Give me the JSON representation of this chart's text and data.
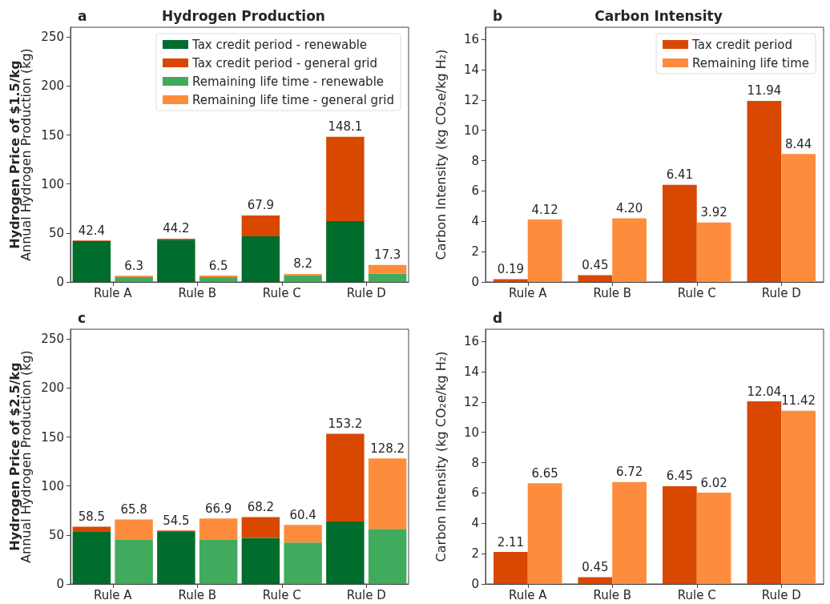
{
  "chart_data": [
    {
      "type": "bar",
      "title": "Hydrogen Production",
      "subtitle": "a",
      "ylabel": "Annual Hydrogen Production (kg)",
      "annotations": [
        "Hydrogen Price of $1.5/kg"
      ],
      "categories": [
        "Rule A",
        null,
        "Rule B",
        null,
        "Rule C",
        null,
        "Rule D",
        null
      ],
      "stacked": true,
      "ylim": [
        0,
        260
      ],
      "yticks": [
        0,
        50,
        100,
        150,
        200,
        250
      ],
      "legend": "top right",
      "totals": [
        "42.4",
        "6.3",
        "44.2",
        "6.5",
        "67.9",
        "8.2",
        "148.1",
        "17.3"
      ],
      "series": [
        {
          "name": "Tax credit period - renewable",
          "color": "#006d2c",
          "values": [
            41.6,
            null,
            43.2,
            null,
            46.6,
            null,
            62.1,
            null
          ]
        },
        {
          "name": "Tax credit period - general grid",
          "color": "#d94801",
          "values": [
            0.8,
            null,
            1.0,
            null,
            21.3,
            null,
            86.0,
            null
          ]
        },
        {
          "name": "Remaining life time - renewable",
          "color": "#41ab5d",
          "values": [
            null,
            5.0,
            null,
            5.0,
            null,
            6.7,
            null,
            8.6
          ]
        },
        {
          "name": "Remaining life time - general grid",
          "color": "#fd8d3c",
          "values": [
            null,
            1.3,
            null,
            1.5,
            null,
            1.5,
            null,
            8.7
          ]
        }
      ]
    },
    {
      "type": "bar",
      "title": "Carbon Intensity",
      "subtitle": "b",
      "ylabel": "Carbon Intensity (kg CO₂e/kg H₂)",
      "categories": [
        "Rule A",
        "Rule B",
        "Rule C",
        "Rule D"
      ],
      "ylim": [
        0,
        16.8
      ],
      "yticks": [
        0,
        2,
        4,
        6,
        8,
        10,
        12,
        14,
        16
      ],
      "legend": "top right",
      "series": [
        {
          "name": "Tax credit period",
          "color": "#d94801",
          "values": [
            0.19,
            0.45,
            6.41,
            11.94
          ],
          "value_labels": [
            "0.19",
            "0.45",
            "6.41",
            "11.94"
          ]
        },
        {
          "name": "Remaining life time",
          "color": "#fd8d3c",
          "values": [
            4.12,
            4.2,
            3.92,
            8.44
          ],
          "value_labels": [
            "4.12",
            "4.20",
            "3.92",
            "8.44"
          ]
        }
      ]
    },
    {
      "type": "bar",
      "subtitle": "c",
      "ylabel": "Annual Hydrogen Production (kg)",
      "annotations": [
        "Hydrogen Price of $2.5/kg"
      ],
      "categories": [
        "Rule A",
        null,
        "Rule B",
        null,
        "Rule C",
        null,
        "Rule D",
        null
      ],
      "stacked": true,
      "ylim": [
        0,
        260
      ],
      "yticks": [
        0,
        50,
        100,
        150,
        200,
        250
      ],
      "totals": [
        "58.5",
        "65.8",
        "54.5",
        "66.9",
        "68.2",
        "60.4",
        "153.2",
        "128.2"
      ],
      "series": [
        {
          "color": "#006d2c",
          "values": [
            53.2,
            null,
            53.2,
            null,
            47.1,
            null,
            63.7,
            null
          ]
        },
        {
          "color": "#d94801",
          "values": [
            5.3,
            null,
            1.3,
            null,
            21.1,
            null,
            89.5,
            null
          ]
        },
        {
          "color": "#41ab5d",
          "values": [
            null,
            44.9,
            null,
            44.9,
            null,
            42.4,
            null,
            56.3
          ]
        },
        {
          "color": "#fd8d3c",
          "values": [
            null,
            20.9,
            null,
            22.0,
            null,
            18.0,
            null,
            71.9
          ]
        }
      ]
    },
    {
      "type": "bar",
      "subtitle": "d",
      "ylabel": "Carbon Intensity (kg CO₂e/kg H₂)",
      "categories": [
        "Rule A",
        "Rule B",
        "Rule C",
        "Rule D"
      ],
      "ylim": [
        0,
        16.8
      ],
      "yticks": [
        0,
        2,
        4,
        6,
        8,
        10,
        12,
        14,
        16
      ],
      "series": [
        {
          "color": "#d94801",
          "values": [
            2.11,
            0.45,
            6.45,
            12.04
          ],
          "value_labels": [
            "2.11",
            "0.45",
            "6.45",
            "12.04"
          ]
        },
        {
          "color": "#fd8d3c",
          "values": [
            6.65,
            6.72,
            6.02,
            11.42
          ],
          "value_labels": [
            "6.65",
            "6.72",
            "6.02",
            "11.42"
          ]
        }
      ]
    }
  ]
}
